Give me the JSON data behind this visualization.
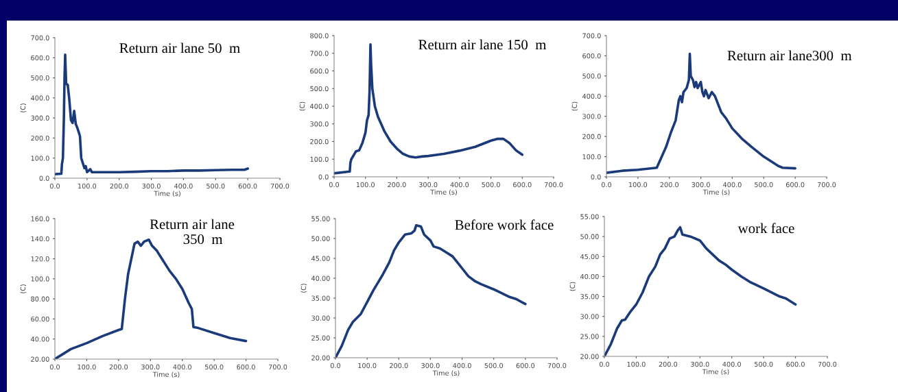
{
  "chart_data": [
    {
      "type": "line",
      "title": "Return air lane 50  m",
      "xlabel": "Time (s)",
      "ylabel": "(C)",
      "color": "#1a3a7a",
      "x": [
        0,
        20,
        22,
        25,
        28,
        30,
        32,
        35,
        40,
        45,
        50,
        55,
        60,
        65,
        70,
        78,
        82,
        88,
        92,
        96,
        100,
        110,
        115,
        150,
        200,
        250,
        300,
        350,
        400,
        450,
        500,
        550,
        590,
        600
      ],
      "values": [
        20,
        22,
        70,
        100,
        300,
        500,
        615,
        470,
        465,
        390,
        290,
        275,
        335,
        270,
        250,
        210,
        100,
        70,
        50,
        60,
        30,
        45,
        30,
        30,
        30,
        32,
        35,
        35,
        38,
        38,
        40,
        42,
        42,
        48
      ],
      "xlim": [
        0,
        700
      ],
      "xticks": [
        {
          "value": 0,
          "label": "0.0"
        },
        {
          "value": 100,
          "label": "100.0"
        },
        {
          "value": 200,
          "label": "200.0"
        },
        {
          "value": 300,
          "label": "300.0"
        },
        {
          "value": 400,
          "label": "400.0"
        },
        {
          "value": 500,
          "label": "500.0"
        },
        {
          "value": 600,
          "label": "600.0"
        },
        {
          "value": 700,
          "label": "700.0"
        }
      ],
      "ylim": [
        0,
        700
      ],
      "yticks": [
        {
          "value": 0,
          "label": "0.0"
        },
        {
          "value": 100,
          "label": "100.0"
        },
        {
          "value": 200,
          "label": "200.0"
        },
        {
          "value": 300,
          "label": "300.0"
        },
        {
          "value": 400,
          "label": "400.0"
        },
        {
          "value": 500,
          "label": "500.0"
        },
        {
          "value": 600,
          "label": "600.0"
        },
        {
          "value": 700,
          "label": "700.0"
        }
      ]
    },
    {
      "type": "line",
      "title": "Return air lane 150  m",
      "xlabel": "Time (s)",
      "ylabel": "(C)",
      "color": "#1a3a7a",
      "x": [
        0,
        50,
        52,
        55,
        70,
        80,
        90,
        100,
        105,
        110,
        113,
        116,
        118,
        122,
        130,
        140,
        160,
        180,
        200,
        220,
        240,
        260,
        280,
        300,
        350,
        400,
        450,
        500,
        520,
        540,
        560,
        580,
        600
      ],
      "values": [
        20,
        30,
        80,
        100,
        145,
        150,
        190,
        250,
        320,
        350,
        480,
        750,
        640,
        500,
        400,
        340,
        260,
        200,
        160,
        130,
        115,
        110,
        115,
        118,
        130,
        148,
        170,
        205,
        215,
        215,
        190,
        150,
        125
      ],
      "xlim": [
        0,
        700
      ],
      "xticks": [
        {
          "value": 0,
          "label": "0.0"
        },
        {
          "value": 100,
          "label": "100.0"
        },
        {
          "value": 200,
          "label": "200.0"
        },
        {
          "value": 300,
          "label": "300.0"
        },
        {
          "value": 400,
          "label": "400.0"
        },
        {
          "value": 500,
          "label": "500.0"
        },
        {
          "value": 600,
          "label": "600.0"
        },
        {
          "value": 700,
          "label": "700.0"
        }
      ],
      "ylim": [
        0,
        800
      ],
      "yticks": [
        {
          "value": 0,
          "label": "0.0"
        },
        {
          "value": 100,
          "label": "100.0"
        },
        {
          "value": 200,
          "label": "200.0"
        },
        {
          "value": 300,
          "label": "300.0"
        },
        {
          "value": 400,
          "label": "400.0"
        },
        {
          "value": 500,
          "label": "500.0"
        },
        {
          "value": 600,
          "label": "600.0"
        },
        {
          "value": 700,
          "label": "700.0"
        },
        {
          "value": 800,
          "label": "800.0"
        }
      ]
    },
    {
      "type": "line",
      "title": "Return air lane300  m",
      "xlabel": "Time (s)",
      "ylabel": "(C)",
      "color": "#1a3a7a",
      "x": [
        0,
        50,
        100,
        160,
        170,
        190,
        205,
        220,
        230,
        235,
        240,
        245,
        255,
        262,
        265,
        268,
        275,
        280,
        285,
        290,
        300,
        305,
        310,
        315,
        325,
        335,
        345,
        355,
        365,
        380,
        400,
        430,
        460,
        500,
        545,
        560,
        600
      ],
      "values": [
        20,
        30,
        35,
        45,
        80,
        150,
        220,
        280,
        380,
        400,
        370,
        420,
        440,
        480,
        610,
        500,
        480,
        445,
        470,
        440,
        470,
        420,
        400,
        430,
        390,
        420,
        400,
        360,
        320,
        290,
        240,
        190,
        150,
        100,
        55,
        45,
        42
      ],
      "xlim": [
        0,
        700
      ],
      "xticks": [
        {
          "value": 0,
          "label": "0.0"
        },
        {
          "value": 100,
          "label": "100.0"
        },
        {
          "value": 200,
          "label": "200.0"
        },
        {
          "value": 300,
          "label": "300.0"
        },
        {
          "value": 400,
          "label": "400.0"
        },
        {
          "value": 500,
          "label": "500.0"
        },
        {
          "value": 600,
          "label": "600.0"
        },
        {
          "value": 700,
          "label": "700.0"
        }
      ],
      "ylim": [
        0,
        700
      ],
      "yticks": [
        {
          "value": 0,
          "label": "0.0"
        },
        {
          "value": 100,
          "label": "100.0"
        },
        {
          "value": 200,
          "label": "200.0"
        },
        {
          "value": 300,
          "label": "300.0"
        },
        {
          "value": 400,
          "label": "400.0"
        },
        {
          "value": 500,
          "label": "500.0"
        },
        {
          "value": 600,
          "label": "600.0"
        },
        {
          "value": 700,
          "label": "700.0"
        }
      ]
    },
    {
      "type": "line",
      "title": "Return air lane\n      350  m",
      "xlabel": "Time (s)",
      "ylabel": "(C)",
      "color": "#1a3a7a",
      "x": [
        0,
        20,
        50,
        100,
        150,
        200,
        210,
        220,
        230,
        240,
        250,
        260,
        270,
        280,
        295,
        305,
        320,
        340,
        360,
        380,
        400,
        420,
        430,
        435,
        450,
        500,
        550,
        600
      ],
      "values": [
        20,
        24,
        30,
        36,
        43,
        49,
        50,
        80,
        105,
        120,
        135,
        137,
        133,
        137,
        139,
        133,
        128,
        118,
        108,
        100,
        90,
        76,
        70,
        52,
        51,
        46,
        41,
        38
      ],
      "xlim": [
        0,
        700
      ],
      "xticks": [
        {
          "value": 0,
          "label": "0.0"
        },
        {
          "value": 100,
          "label": "100.0"
        },
        {
          "value": 200,
          "label": "200.0"
        },
        {
          "value": 300,
          "label": "300.0"
        },
        {
          "value": 400,
          "label": "400.0"
        },
        {
          "value": 500,
          "label": "500.0"
        },
        {
          "value": 600,
          "label": "600.0"
        },
        {
          "value": 700,
          "label": "700.0"
        }
      ],
      "ylim": [
        20,
        160
      ],
      "yticks": [
        {
          "value": 20,
          "label": "20.00"
        },
        {
          "value": 40,
          "label": "40.00"
        },
        {
          "value": 60,
          "label": "60.00"
        },
        {
          "value": 80,
          "label": "80.00"
        },
        {
          "value": 100,
          "label": "100.0"
        },
        {
          "value": 120,
          "label": "120.0"
        },
        {
          "value": 140,
          "label": "140.0"
        },
        {
          "value": 160,
          "label": "160.0"
        }
      ]
    },
    {
      "type": "line",
      "title": "Before work face",
      "xlabel": "Time (s)",
      "ylabel": "(C)",
      "color": "#1a3a7a",
      "x": [
        0,
        20,
        40,
        55,
        80,
        100,
        120,
        150,
        170,
        185,
        200,
        220,
        240,
        250,
        255,
        270,
        280,
        300,
        310,
        330,
        350,
        370,
        390,
        400,
        420,
        440,
        460,
        500,
        550,
        570,
        600
      ],
      "values": [
        20,
        23,
        27,
        29,
        31,
        34,
        37,
        41,
        44,
        47,
        49,
        51,
        51.3,
        52,
        53.3,
        53,
        51,
        49.5,
        48,
        47.5,
        46.5,
        45.5,
        43.5,
        42.5,
        40.5,
        39.3,
        38.5,
        37.2,
        35.3,
        34.8,
        33.5
      ],
      "xlim": [
        0,
        700
      ],
      "xticks": [
        {
          "value": 0,
          "label": "0.0"
        },
        {
          "value": 100,
          "label": "100.0"
        },
        {
          "value": 200,
          "label": "200.0"
        },
        {
          "value": 300,
          "label": "300.0"
        },
        {
          "value": 400,
          "label": "400.0"
        },
        {
          "value": 500,
          "label": "500.0"
        },
        {
          "value": 600,
          "label": "600.0"
        },
        {
          "value": 700,
          "label": "700.0"
        }
      ],
      "ylim": [
        20,
        55
      ],
      "yticks": [
        {
          "value": 20,
          "label": "20.00"
        },
        {
          "value": 25,
          "label": "25.00"
        },
        {
          "value": 30,
          "label": "30.00"
        },
        {
          "value": 35,
          "label": "35.00"
        },
        {
          "value": 40,
          "label": "40.00"
        },
        {
          "value": 45,
          "label": "45.00"
        },
        {
          "value": 50,
          "label": "50.00"
        },
        {
          "value": 55,
          "label": "55.00"
        }
      ]
    },
    {
      "type": "line",
      "title": "work face",
      "xlabel": "Time (s)",
      "ylabel": "(C)",
      "color": "#1a3a7a",
      "x": [
        0,
        20,
        40,
        55,
        65,
        80,
        100,
        120,
        140,
        160,
        175,
        190,
        205,
        220,
        230,
        238,
        245,
        270,
        300,
        320,
        340,
        360,
        380,
        400,
        430,
        460,
        500,
        550,
        570,
        600
      ],
      "values": [
        20,
        23,
        27,
        29,
        29.2,
        31,
        33,
        36,
        40,
        42.5,
        45.5,
        47,
        49.5,
        50,
        51.5,
        52.3,
        50.5,
        50,
        49,
        47,
        45.5,
        44,
        43,
        41.7,
        40,
        38.5,
        37,
        35,
        34.5,
        33
      ],
      "xlim": [
        0,
        700
      ],
      "xticks": [
        {
          "value": 0,
          "label": "0.0"
        },
        {
          "value": 100,
          "label": "100.0"
        },
        {
          "value": 200,
          "label": "200.0"
        },
        {
          "value": 300,
          "label": "300.0"
        },
        {
          "value": 400,
          "label": "400.0"
        },
        {
          "value": 500,
          "label": "500.0"
        },
        {
          "value": 600,
          "label": "600.0"
        },
        {
          "value": 700,
          "label": "700.0"
        }
      ],
      "ylim": [
        20,
        55
      ],
      "yticks": [
        {
          "value": 20,
          "label": "20.00"
        },
        {
          "value": 25,
          "label": "25.00"
        },
        {
          "value": 30,
          "label": "30.00"
        },
        {
          "value": 35,
          "label": "35.00"
        },
        {
          "value": 40,
          "label": "40.00"
        },
        {
          "value": 45,
          "label": "45.00"
        },
        {
          "value": 50,
          "label": "50.00"
        },
        {
          "value": 55,
          "label": "55.00"
        }
      ]
    }
  ]
}
